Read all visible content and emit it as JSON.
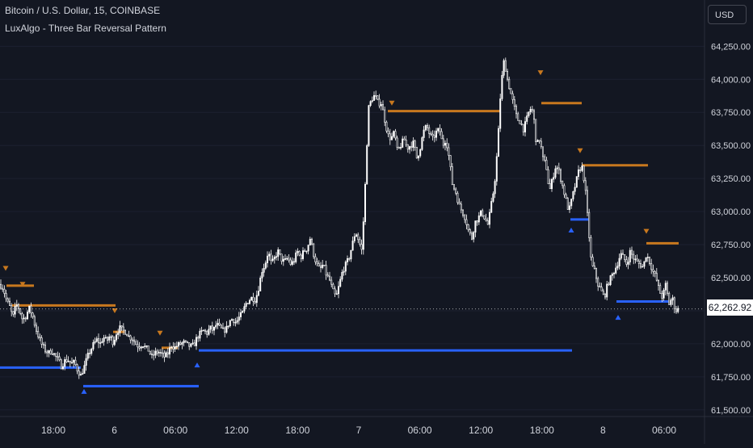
{
  "header": {
    "title": "Bitcoin / U.S. Dollar, 15, COINBASE",
    "indicator": "LuxAlgo - Three Bar Reversal Pattern",
    "currency": "USD"
  },
  "last_price": "62,262.92",
  "colors": {
    "background": "#131722",
    "candle": "#ffffff",
    "bearish_level": "#c8781e",
    "bullish_level": "#2962ff",
    "bearish_marker": "#c8781e",
    "bullish_marker": "#2962ff",
    "axis_text": "#d1d4dc"
  },
  "chart_data": {
    "type": "candlestick",
    "symbol": "BTCUSD",
    "interval": "15",
    "ylim": [
      61450,
      64600
    ],
    "y_ticks": [
      {
        "value": 61500,
        "label": "61,500.00"
      },
      {
        "value": 61750,
        "label": "61,750.00"
      },
      {
        "value": 62000,
        "label": "62,000.00"
      },
      {
        "value": 62250,
        "label": ""
      },
      {
        "value": 62500,
        "label": "62,500.00"
      },
      {
        "value": 62750,
        "label": "62,750.00"
      },
      {
        "value": 63000,
        "label": "63,000.00"
      },
      {
        "value": 63250,
        "label": "63,250.00"
      },
      {
        "value": 63500,
        "label": "63,500.00"
      },
      {
        "value": 63750,
        "label": "63,750.00"
      },
      {
        "value": 64000,
        "label": "64,000.00"
      },
      {
        "value": 64250,
        "label": "64,250.00"
      }
    ],
    "x_ticks": [
      "18:00",
      "6",
      "06:00",
      "12:00",
      "18:00",
      "7",
      "06:00",
      "12:00",
      "18:00",
      "8",
      "06:00"
    ],
    "close_path": [
      [
        0,
        62450
      ],
      [
        4,
        62420
      ],
      [
        8,
        62330
      ],
      [
        12,
        62280
      ],
      [
        16,
        62200
      ],
      [
        20,
        62300
      ],
      [
        24,
        62260
      ],
      [
        28,
        62180
      ],
      [
        32,
        62210
      ],
      [
        36,
        62270
      ],
      [
        40,
        62220
      ],
      [
        44,
        62120
      ],
      [
        48,
        62050
      ],
      [
        52,
        61990
      ],
      [
        56,
        61950
      ],
      [
        60,
        61930
      ],
      [
        64,
        61950
      ],
      [
        68,
        61910
      ],
      [
        72,
        61880
      ],
      [
        76,
        61830
      ],
      [
        80,
        61870
      ],
      [
        84,
        61880
      ],
      [
        88,
        61850
      ],
      [
        92,
        61860
      ],
      [
        96,
        61800
      ],
      [
        100,
        61760
      ],
      [
        104,
        61820
      ],
      [
        108,
        61900
      ],
      [
        112,
        61950
      ],
      [
        116,
        62000
      ],
      [
        120,
        62030
      ],
      [
        124,
        62000
      ],
      [
        128,
        62050
      ],
      [
        132,
        62020
      ],
      [
        136,
        62060
      ],
      [
        140,
        62010
      ],
      [
        144,
        62080
      ],
      [
        148,
        62120
      ],
      [
        152,
        62100
      ],
      [
        156,
        62090
      ],
      [
        160,
        62050
      ],
      [
        164,
        62040
      ],
      [
        168,
        62000
      ],
      [
        172,
        61980
      ],
      [
        176,
        62000
      ],
      [
        180,
        61970
      ],
      [
        184,
        61950
      ],
      [
        188,
        61900
      ],
      [
        192,
        61930
      ],
      [
        196,
        61940
      ],
      [
        200,
        61920
      ],
      [
        204,
        61900
      ],
      [
        208,
        61930
      ],
      [
        212,
        61990
      ],
      [
        216,
        61970
      ],
      [
        220,
        61990
      ],
      [
        224,
        62000
      ],
      [
        228,
        62010
      ],
      [
        232,
        61990
      ],
      [
        236,
        61980
      ],
      [
        240,
        61990
      ],
      [
        244,
        62050
      ],
      [
        248,
        62080
      ],
      [
        252,
        62100
      ],
      [
        256,
        62080
      ],
      [
        260,
        62120
      ],
      [
        264,
        62100
      ],
      [
        268,
        62150
      ],
      [
        272,
        62120
      ],
      [
        276,
        62100
      ],
      [
        280,
        62110
      ],
      [
        284,
        62170
      ],
      [
        288,
        62190
      ],
      [
        292,
        62160
      ],
      [
        296,
        62200
      ],
      [
        300,
        62230
      ],
      [
        304,
        62300
      ],
      [
        308,
        62330
      ],
      [
        312,
        62350
      ],
      [
        316,
        62330
      ],
      [
        320,
        62420
      ],
      [
        324,
        62550
      ],
      [
        328,
        62600
      ],
      [
        332,
        62700
      ],
      [
        336,
        62600
      ],
      [
        340,
        62650
      ],
      [
        344,
        62700
      ],
      [
        348,
        62640
      ],
      [
        352,
        62620
      ],
      [
        356,
        62650
      ],
      [
        360,
        62600
      ],
      [
        364,
        62630
      ],
      [
        368,
        62700
      ],
      [
        372,
        62650
      ],
      [
        376,
        62700
      ],
      [
        380,
        62720
      ],
      [
        384,
        62800
      ],
      [
        388,
        62680
      ],
      [
        392,
        62600
      ],
      [
        396,
        62560
      ],
      [
        400,
        62600
      ],
      [
        404,
        62520
      ],
      [
        408,
        62480
      ],
      [
        412,
        62400
      ],
      [
        416,
        62350
      ],
      [
        420,
        62450
      ],
      [
        424,
        62550
      ],
      [
        428,
        62600
      ],
      [
        432,
        62650
      ],
      [
        436,
        62750
      ],
      [
        440,
        62850
      ],
      [
        444,
        62780
      ],
      [
        448,
        62700
      ],
      [
        452,
        63200
      ],
      [
        456,
        63780
      ],
      [
        460,
        63850
      ],
      [
        464,
        63880
      ],
      [
        468,
        63820
      ],
      [
        472,
        63820
      ],
      [
        476,
        63700
      ],
      [
        480,
        63580
      ],
      [
        484,
        63550
      ],
      [
        488,
        63600
      ],
      [
        492,
        63450
      ],
      [
        496,
        63500
      ],
      [
        500,
        63550
      ],
      [
        504,
        63480
      ],
      [
        508,
        63500
      ],
      [
        512,
        63520
      ],
      [
        516,
        63400
      ],
      [
        520,
        63480
      ],
      [
        524,
        63600
      ],
      [
        528,
        63650
      ],
      [
        532,
        63580
      ],
      [
        536,
        63550
      ],
      [
        540,
        63600
      ],
      [
        544,
        63620
      ],
      [
        548,
        63500
      ],
      [
        552,
        63550
      ],
      [
        556,
        63400
      ],
      [
        560,
        63200
      ],
      [
        564,
        63150
      ],
      [
        568,
        63050
      ],
      [
        572,
        63000
      ],
      [
        576,
        62950
      ],
      [
        580,
        62850
      ],
      [
        584,
        62800
      ],
      [
        588,
        62920
      ],
      [
        592,
        62950
      ],
      [
        596,
        63000
      ],
      [
        600,
        62950
      ],
      [
        604,
        62900
      ],
      [
        608,
        63050
      ],
      [
        612,
        63200
      ],
      [
        616,
        63500
      ],
      [
        620,
        63950
      ],
      [
        624,
        64150
      ],
      [
        628,
        64000
      ],
      [
        632,
        63900
      ],
      [
        636,
        63800
      ],
      [
        640,
        63700
      ],
      [
        644,
        63680
      ],
      [
        648,
        63620
      ],
      [
        652,
        63700
      ],
      [
        656,
        63780
      ],
      [
        660,
        63750
      ],
      [
        664,
        63500
      ],
      [
        668,
        63550
      ],
      [
        672,
        63400
      ],
      [
        676,
        63350
      ],
      [
        680,
        63150
      ],
      [
        684,
        63250
      ],
      [
        688,
        63350
      ],
      [
        692,
        63300
      ],
      [
        696,
        63200
      ],
      [
        700,
        63100
      ],
      [
        704,
        63000
      ],
      [
        708,
        63100
      ],
      [
        712,
        63200
      ],
      [
        716,
        63300
      ],
      [
        720,
        63350
      ],
      [
        724,
        63200
      ],
      [
        728,
        62900
      ],
      [
        732,
        62600
      ],
      [
        736,
        62550
      ],
      [
        740,
        62450
      ],
      [
        744,
        62400
      ],
      [
        748,
        62350
      ],
      [
        752,
        62450
      ],
      [
        756,
        62500
      ],
      [
        760,
        62550
      ],
      [
        764,
        62600
      ],
      [
        768,
        62680
      ],
      [
        772,
        62650
      ],
      [
        776,
        62600
      ],
      [
        780,
        62700
      ],
      [
        784,
        62650
      ],
      [
        788,
        62620
      ],
      [
        792,
        62600
      ],
      [
        796,
        62580
      ],
      [
        800,
        62680
      ],
      [
        804,
        62620
      ],
      [
        808,
        62550
      ],
      [
        812,
        62500
      ],
      [
        816,
        62400
      ],
      [
        820,
        62350
      ],
      [
        824,
        62450
      ],
      [
        828,
        62300
      ],
      [
        832,
        62350
      ],
      [
        836,
        62250
      ],
      [
        840,
        62262.92
      ]
    ],
    "levels": [
      {
        "kind": "bearish",
        "price": 62440,
        "x0": 8,
        "x1": 42
      },
      {
        "kind": "bearish",
        "price": 62290,
        "x0": 15,
        "x1": 143
      },
      {
        "kind": "bullish",
        "price": 61820,
        "x0": 0,
        "x1": 100
      },
      {
        "kind": "bearish",
        "price": 62090,
        "x0": 140,
        "x1": 155
      },
      {
        "kind": "bullish",
        "price": 61680,
        "x0": 103,
        "x1": 246
      },
      {
        "kind": "bearish",
        "price": 61970,
        "x0": 200,
        "x1": 220
      },
      {
        "kind": "bullish",
        "price": 61950,
        "x0": 246,
        "x1": 708
      },
      {
        "kind": "bearish",
        "price": 63760,
        "x0": 480,
        "x1": 620
      },
      {
        "kind": "bearish",
        "price": 63820,
        "x0": 670,
        "x1": 720
      },
      {
        "kind": "bearish",
        "price": 63350,
        "x0": 720,
        "x1": 802
      },
      {
        "kind": "bullish",
        "price": 62940,
        "x0": 706,
        "x1": 730
      },
      {
        "kind": "bearish",
        "price": 62760,
        "x0": 800,
        "x1": 840
      },
      {
        "kind": "bullish",
        "price": 62320,
        "x0": 763,
        "x1": 828
      }
    ],
    "bearish_markers": [
      [
        7,
        62570
      ],
      [
        28,
        62450
      ],
      [
        142,
        62250
      ],
      [
        198,
        62080
      ],
      [
        485,
        63820
      ],
      [
        669,
        64050
      ],
      [
        718,
        63460
      ],
      [
        800,
        62850
      ]
    ],
    "bullish_markers": [
      [
        104,
        61640
      ],
      [
        244,
        61840
      ],
      [
        707,
        62860
      ],
      [
        765,
        62200
      ]
    ]
  }
}
